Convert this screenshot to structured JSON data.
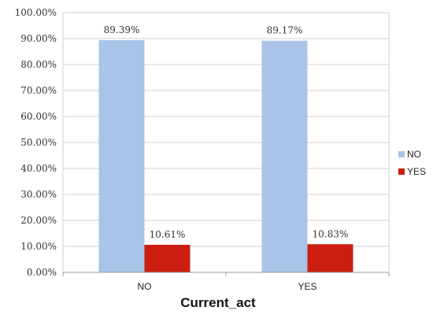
{
  "chart_data": {
    "type": "bar",
    "xlabel": "Current_act",
    "ylabel": "",
    "categories": [
      "NO",
      "YES"
    ],
    "ylim": [
      0,
      100
    ],
    "ytick_step": 10,
    "ytick_labels": [
      "0.00%",
      "10.00%",
      "20.00%",
      "30.00%",
      "40.00%",
      "50.00%",
      "60.00%",
      "70.00%",
      "80.00%",
      "90.00%",
      "100.00%"
    ],
    "grid": true,
    "legend_position": "right",
    "series": [
      {
        "name": "NO",
        "color": "#a9c4e8",
        "values": [
          89.39,
          89.17
        ],
        "labels": [
          "89.39%",
          "89.17%"
        ]
      },
      {
        "name": "YES",
        "color": "#cc1e10",
        "values": [
          10.61,
          10.83
        ],
        "labels": [
          "10.61%",
          "10.83%"
        ]
      }
    ]
  }
}
